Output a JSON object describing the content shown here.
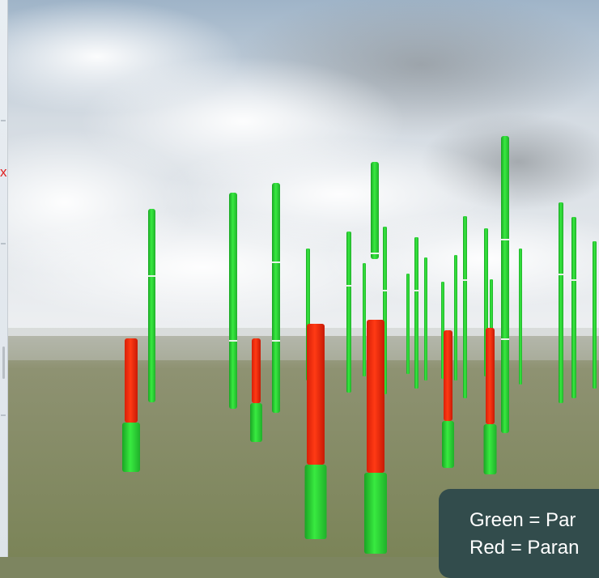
{
  "panel": {
    "close_glyph": "x"
  },
  "legend": {
    "green_text": "Green = Par",
    "red_text": "Red = Paran"
  },
  "colors": {
    "green": "#2fe33a",
    "red": "#f22a10",
    "ground": "#7d8560",
    "sky": "#dfe4e8",
    "legend_bg": "#324c4c"
  }
}
